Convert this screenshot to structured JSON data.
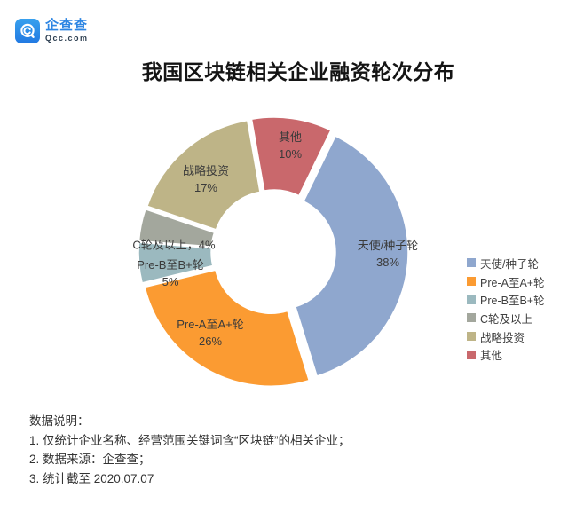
{
  "logo": {
    "brand": "企查查",
    "domain": "Qcc.com",
    "brand_color": "#2E86E3",
    "icon": "qcc-magnifier-icon"
  },
  "title": "我国区块链相关企业融资轮次分布",
  "chart_data": {
    "type": "pie",
    "subtype": "donut",
    "title": "我国区块链相关企业融资轮次分布",
    "unit": "%",
    "clockwise": true,
    "start_angle_deg": 26,
    "exploded": true,
    "legend_position": "right",
    "categories": [
      "天使/种子轮",
      "Pre-A至A+轮",
      "Pre-B至B+轮",
      "C轮及以上",
      "战略投资",
      "其他"
    ],
    "values": [
      38,
      26,
      5,
      4,
      17,
      10
    ],
    "colors": [
      "#8FA7CE",
      "#FB9B32",
      "#9BB9BF",
      "#A3A79D",
      "#BEB487",
      "#C9686C"
    ],
    "slice_label_lines": [
      [
        "天使/种子轮",
        "38%"
      ],
      [
        "Pre-A至A+轮",
        "26%"
      ],
      [
        "Pre-B至B+轮",
        "5%"
      ],
      [
        "C轮及以上，4%"
      ],
      [
        "战略投资",
        "17%"
      ],
      [
        "其他",
        "10%"
      ]
    ]
  },
  "legend": {
    "items": [
      {
        "label": "天使/种子轮",
        "color": "#8FA7CE"
      },
      {
        "label": "Pre-A至A+轮",
        "color": "#FB9B32"
      },
      {
        "label": "Pre-B至B+轮",
        "color": "#9BB9BF"
      },
      {
        "label": "C轮及以上",
        "color": "#A3A79D"
      },
      {
        "label": "战略投资",
        "color": "#BEB487"
      },
      {
        "label": "其他",
        "color": "#C9686C"
      }
    ]
  },
  "notes": {
    "heading": "数据说明：",
    "items": [
      "1. 仅统计企业名称、经营范围关键词含“区块链”的相关企业；",
      "2. 数据来源：企查查；",
      "3. 统计截至 2020.07.07"
    ]
  }
}
